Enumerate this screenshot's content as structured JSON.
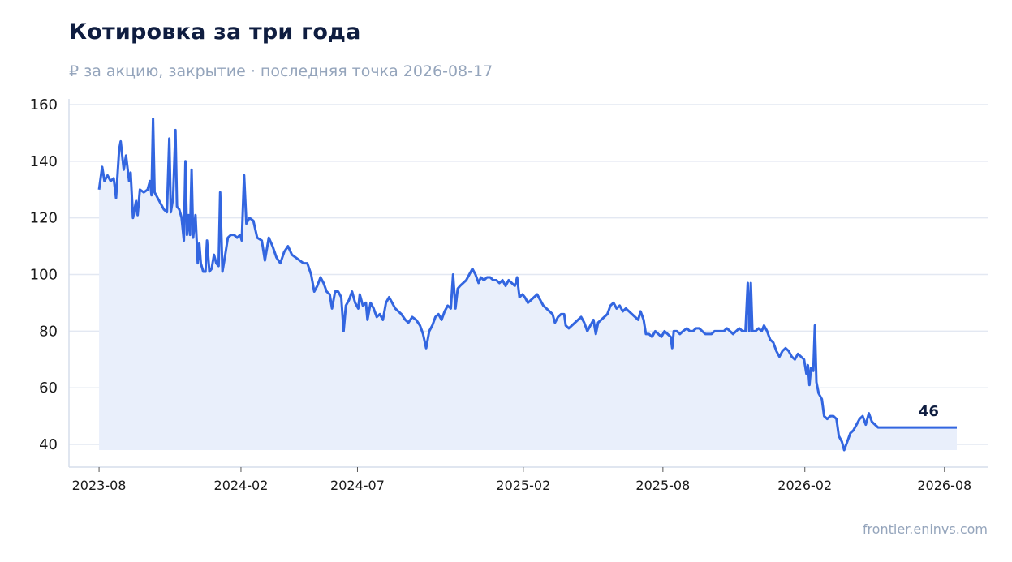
{
  "header": {
    "title": "Котировка за три года",
    "subtitle": "₽ за акцию, закрытие · последняя точка 2026-08-17"
  },
  "footer": {
    "source": "frontier.eninvs.com"
  },
  "colors": {
    "line": "#3366e0",
    "area": "#e9effb",
    "grid": "#e3e8f2",
    "axis": "#d6deeb",
    "title": "#0f1d40",
    "muted": "#95a5bc"
  },
  "chart_data": {
    "type": "area",
    "title": "Котировка за три года",
    "subtitle": "₽ за акцию, закрытие · последняя точка 2026-08-17",
    "xlabel": "",
    "ylabel": "",
    "ylim": [
      32,
      162
    ],
    "xlim": [
      "2023-06-23",
      "2026-09-26"
    ],
    "yticks": [
      40,
      60,
      80,
      100,
      120,
      140,
      160
    ],
    "xticks": [
      "2023-08",
      "2024-02",
      "2024-07",
      "2025-02",
      "2025-08",
      "2026-02",
      "2026-08"
    ],
    "grid": "horizontal",
    "last_value_label": "46",
    "series": [
      {
        "points": [
          [
            "2023-08-01",
            130
          ],
          [
            "2023-08-05",
            138
          ],
          [
            "2023-08-08",
            133
          ],
          [
            "2023-08-12",
            135
          ],
          [
            "2023-08-16",
            133
          ],
          [
            "2023-08-20",
            134
          ],
          [
            "2023-08-23",
            127
          ],
          [
            "2023-08-27",
            144
          ],
          [
            "2023-08-29",
            147
          ],
          [
            "2023-09-02",
            137
          ],
          [
            "2023-09-05",
            142
          ],
          [
            "2023-09-09",
            133
          ],
          [
            "2023-09-11",
            136
          ],
          [
            "2023-09-14",
            120
          ],
          [
            "2023-09-18",
            126
          ],
          [
            "2023-09-20",
            121
          ],
          [
            "2023-09-23",
            130
          ],
          [
            "2023-09-28",
            129
          ],
          [
            "2023-10-03",
            130
          ],
          [
            "2023-10-06",
            133
          ],
          [
            "2023-10-08",
            128
          ],
          [
            "2023-10-10",
            155
          ],
          [
            "2023-10-12",
            129
          ],
          [
            "2023-10-16",
            127
          ],
          [
            "2023-10-20",
            125
          ],
          [
            "2023-10-24",
            123
          ],
          [
            "2023-10-28",
            122
          ],
          [
            "2023-10-31",
            148
          ],
          [
            "2023-11-02",
            122
          ],
          [
            "2023-11-05",
            127
          ],
          [
            "2023-11-08",
            151
          ],
          [
            "2023-11-10",
            124
          ],
          [
            "2023-11-13",
            123
          ],
          [
            "2023-11-16",
            120
          ],
          [
            "2023-11-19",
            112
          ],
          [
            "2023-11-21",
            140
          ],
          [
            "2023-11-23",
            114
          ],
          [
            "2023-11-25",
            121
          ],
          [
            "2023-11-27",
            114
          ],
          [
            "2023-11-29",
            137
          ],
          [
            "2023-12-01",
            113
          ],
          [
            "2023-12-04",
            121
          ],
          [
            "2023-12-07",
            104
          ],
          [
            "2023-12-09",
            111
          ],
          [
            "2023-12-11",
            104
          ],
          [
            "2023-12-14",
            101
          ],
          [
            "2023-12-17",
            101
          ],
          [
            "2023-12-19",
            112
          ],
          [
            "2023-12-22",
            101
          ],
          [
            "2023-12-25",
            102
          ],
          [
            "2023-12-28",
            107
          ],
          [
            "2023-12-31",
            104
          ],
          [
            "2024-01-03",
            103
          ],
          [
            "2024-01-05",
            129
          ],
          [
            "2024-01-08",
            101
          ],
          [
            "2024-01-11",
            106
          ],
          [
            "2024-01-15",
            113
          ],
          [
            "2024-01-19",
            114
          ],
          [
            "2024-01-23",
            114
          ],
          [
            "2024-01-27",
            113
          ],
          [
            "2024-01-31",
            114
          ],
          [
            "2024-02-02",
            112
          ],
          [
            "2024-02-05",
            135
          ],
          [
            "2024-02-08",
            118
          ],
          [
            "2024-02-12",
            120
          ],
          [
            "2024-02-17",
            119
          ],
          [
            "2024-02-22",
            113
          ],
          [
            "2024-02-28",
            112
          ],
          [
            "2024-03-03",
            105
          ],
          [
            "2024-03-08",
            113
          ],
          [
            "2024-03-13",
            110
          ],
          [
            "2024-03-18",
            106
          ],
          [
            "2024-03-23",
            104
          ],
          [
            "2024-03-28",
            108
          ],
          [
            "2024-04-02",
            110
          ],
          [
            "2024-04-07",
            107
          ],
          [
            "2024-04-12",
            106
          ],
          [
            "2024-04-17",
            105
          ],
          [
            "2024-04-22",
            104
          ],
          [
            "2024-04-27",
            104
          ],
          [
            "2024-05-02",
            100
          ],
          [
            "2024-05-06",
            94
          ],
          [
            "2024-05-10",
            96
          ],
          [
            "2024-05-14",
            99
          ],
          [
            "2024-05-18",
            97
          ],
          [
            "2024-05-22",
            94
          ],
          [
            "2024-05-26",
            93
          ],
          [
            "2024-05-29",
            88
          ],
          [
            "2024-06-02",
            94
          ],
          [
            "2024-06-06",
            94
          ],
          [
            "2024-06-10",
            92
          ],
          [
            "2024-06-13",
            80
          ],
          [
            "2024-06-16",
            89
          ],
          [
            "2024-06-20",
            91
          ],
          [
            "2024-06-24",
            94
          ],
          [
            "2024-06-28",
            90
          ],
          [
            "2024-07-02",
            88
          ],
          [
            "2024-07-04",
            93
          ],
          [
            "2024-07-08",
            89
          ],
          [
            "2024-07-12",
            90
          ],
          [
            "2024-07-14",
            84
          ],
          [
            "2024-07-18",
            90
          ],
          [
            "2024-07-22",
            88
          ],
          [
            "2024-07-26",
            85
          ],
          [
            "2024-07-30",
            86
          ],
          [
            "2024-08-03",
            84
          ],
          [
            "2024-08-07",
            90
          ],
          [
            "2024-08-11",
            92
          ],
          [
            "2024-08-15",
            90
          ],
          [
            "2024-08-19",
            88
          ],
          [
            "2024-08-23",
            87
          ],
          [
            "2024-08-27",
            86
          ],
          [
            "2024-09-01",
            84
          ],
          [
            "2024-09-05",
            83
          ],
          [
            "2024-09-10",
            85
          ],
          [
            "2024-09-15",
            84
          ],
          [
            "2024-09-20",
            82
          ],
          [
            "2024-09-24",
            79
          ],
          [
            "2024-09-28",
            74
          ],
          [
            "2024-10-02",
            80
          ],
          [
            "2024-10-06",
            82
          ],
          [
            "2024-10-10",
            85
          ],
          [
            "2024-10-14",
            86
          ],
          [
            "2024-10-18",
            84
          ],
          [
            "2024-10-22",
            87
          ],
          [
            "2024-10-26",
            89
          ],
          [
            "2024-10-30",
            88
          ],
          [
            "2024-11-02",
            100
          ],
          [
            "2024-11-05",
            88
          ],
          [
            "2024-11-08",
            95
          ],
          [
            "2024-11-11",
            96
          ],
          [
            "2024-11-15",
            97
          ],
          [
            "2024-11-19",
            98
          ],
          [
            "2024-11-23",
            100
          ],
          [
            "2024-11-27",
            102
          ],
          [
            "2024-12-01",
            100
          ],
          [
            "2024-12-05",
            97
          ],
          [
            "2024-12-08",
            99
          ],
          [
            "2024-12-12",
            98
          ],
          [
            "2024-12-16",
            99
          ],
          [
            "2024-12-20",
            99
          ],
          [
            "2024-12-24",
            98
          ],
          [
            "2024-12-28",
            98
          ],
          [
            "2025-01-01",
            97
          ],
          [
            "2025-01-05",
            98
          ],
          [
            "2025-01-09",
            96
          ],
          [
            "2025-01-13",
            98
          ],
          [
            "2025-01-17",
            97
          ],
          [
            "2025-01-21",
            96
          ],
          [
            "2025-01-24",
            99
          ],
          [
            "2025-01-27",
            92
          ],
          [
            "2025-01-31",
            93
          ],
          [
            "2025-02-03",
            92
          ],
          [
            "2025-02-07",
            90
          ],
          [
            "2025-02-11",
            91
          ],
          [
            "2025-02-15",
            92
          ],
          [
            "2025-02-19",
            93
          ],
          [
            "2025-02-23",
            91
          ],
          [
            "2025-02-27",
            89
          ],
          [
            "2025-03-03",
            88
          ],
          [
            "2025-03-07",
            87
          ],
          [
            "2025-03-11",
            86
          ],
          [
            "2025-03-14",
            83
          ],
          [
            "2025-03-18",
            85
          ],
          [
            "2025-03-22",
            86
          ],
          [
            "2025-03-26",
            86
          ],
          [
            "2025-03-28",
            82
          ],
          [
            "2025-04-01",
            81
          ],
          [
            "2025-04-05",
            82
          ],
          [
            "2025-04-09",
            83
          ],
          [
            "2025-04-13",
            84
          ],
          [
            "2025-04-17",
            85
          ],
          [
            "2025-04-21",
            83
          ],
          [
            "2025-04-25",
            80
          ],
          [
            "2025-04-29",
            82
          ],
          [
            "2025-05-03",
            84
          ],
          [
            "2025-05-06",
            79
          ],
          [
            "2025-05-09",
            83
          ],
          [
            "2025-05-13",
            84
          ],
          [
            "2025-05-17",
            85
          ],
          [
            "2025-05-21",
            86
          ],
          [
            "2025-05-25",
            89
          ],
          [
            "2025-05-29",
            90
          ],
          [
            "2025-06-02",
            88
          ],
          [
            "2025-06-06",
            89
          ],
          [
            "2025-06-10",
            87
          ],
          [
            "2025-06-14",
            88
          ],
          [
            "2025-06-18",
            87
          ],
          [
            "2025-06-22",
            86
          ],
          [
            "2025-06-26",
            85
          ],
          [
            "2025-06-30",
            84
          ],
          [
            "2025-07-03",
            87
          ],
          [
            "2025-07-07",
            84
          ],
          [
            "2025-07-10",
            79
          ],
          [
            "2025-07-14",
            79
          ],
          [
            "2025-07-18",
            78
          ],
          [
            "2025-07-22",
            80
          ],
          [
            "2025-07-26",
            79
          ],
          [
            "2025-07-30",
            78
          ],
          [
            "2025-08-03",
            80
          ],
          [
            "2025-08-07",
            79
          ],
          [
            "2025-08-11",
            78
          ],
          [
            "2025-08-13",
            74
          ],
          [
            "2025-08-15",
            80
          ],
          [
            "2025-08-19",
            80
          ],
          [
            "2025-08-23",
            79
          ],
          [
            "2025-08-27",
            80
          ],
          [
            "2025-09-01",
            81
          ],
          [
            "2025-09-05",
            80
          ],
          [
            "2025-09-09",
            80
          ],
          [
            "2025-09-13",
            81
          ],
          [
            "2025-09-17",
            81
          ],
          [
            "2025-09-21",
            80
          ],
          [
            "2025-09-25",
            79
          ],
          [
            "2025-09-29",
            79
          ],
          [
            "2025-10-03",
            79
          ],
          [
            "2025-10-07",
            80
          ],
          [
            "2025-10-11",
            80
          ],
          [
            "2025-10-15",
            80
          ],
          [
            "2025-10-19",
            80
          ],
          [
            "2025-10-23",
            81
          ],
          [
            "2025-10-27",
            80
          ],
          [
            "2025-10-31",
            79
          ],
          [
            "2025-11-04",
            80
          ],
          [
            "2025-11-08",
            81
          ],
          [
            "2025-11-12",
            80
          ],
          [
            "2025-11-16",
            80
          ],
          [
            "2025-11-19",
            97
          ],
          [
            "2025-11-21",
            80
          ],
          [
            "2025-11-23",
            97
          ],
          [
            "2025-11-25",
            80
          ],
          [
            "2025-11-29",
            80
          ],
          [
            "2025-12-03",
            81
          ],
          [
            "2025-12-07",
            80
          ],
          [
            "2025-12-10",
            82
          ],
          [
            "2025-12-14",
            80
          ],
          [
            "2025-12-18",
            77
          ],
          [
            "2025-12-22",
            76
          ],
          [
            "2025-12-26",
            73
          ],
          [
            "2025-12-30",
            71
          ],
          [
            "2026-01-03",
            73
          ],
          [
            "2026-01-07",
            74
          ],
          [
            "2026-01-11",
            73
          ],
          [
            "2026-01-15",
            71
          ],
          [
            "2026-01-19",
            70
          ],
          [
            "2026-01-23",
            72
          ],
          [
            "2026-01-27",
            71
          ],
          [
            "2026-01-31",
            70
          ],
          [
            "2026-02-03",
            65
          ],
          [
            "2026-02-05",
            68
          ],
          [
            "2026-02-07",
            61
          ],
          [
            "2026-02-09",
            67
          ],
          [
            "2026-02-12",
            66
          ],
          [
            "2026-02-14",
            82
          ],
          [
            "2026-02-16",
            62
          ],
          [
            "2026-02-19",
            58
          ],
          [
            "2026-02-23",
            56
          ],
          [
            "2026-02-26",
            50
          ],
          [
            "2026-03-02",
            49
          ],
          [
            "2026-03-06",
            50
          ],
          [
            "2026-03-10",
            50
          ],
          [
            "2026-03-14",
            49
          ],
          [
            "2026-03-17",
            43
          ],
          [
            "2026-03-21",
            41
          ],
          [
            "2026-03-24",
            38
          ],
          [
            "2026-03-28",
            41
          ],
          [
            "2026-04-01",
            44
          ],
          [
            "2026-04-05",
            45
          ],
          [
            "2026-04-09",
            47
          ],
          [
            "2026-04-13",
            49
          ],
          [
            "2026-04-17",
            50
          ],
          [
            "2026-04-21",
            47
          ],
          [
            "2026-04-25",
            51
          ],
          [
            "2026-04-29",
            48
          ],
          [
            "2026-05-03",
            47
          ],
          [
            "2026-05-07",
            46
          ],
          [
            "2026-08-17",
            46
          ]
        ]
      }
    ]
  }
}
